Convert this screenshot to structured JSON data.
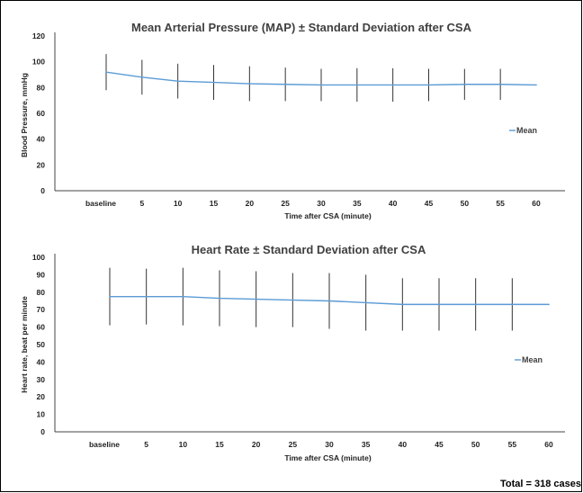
{
  "chart_data": [
    {
      "type": "line",
      "title": "Mean Arterial Pressure (MAP) ± Standard Deviation after CSA",
      "xlabel": "Time after CSA (minute)",
      "ylabel": "Blood Pressure, mmHg",
      "categories": [
        "baseline",
        "5",
        "10",
        "15",
        "20",
        "25",
        "30",
        "35",
        "40",
        "45",
        "50",
        "55",
        "60"
      ],
      "ylim": [
        0,
        120
      ],
      "yticks": [
        0,
        20,
        40,
        60,
        80,
        100,
        120
      ],
      "series": [
        {
          "name": "Mean",
          "color": "#5b9bd5",
          "values": [
            92,
            88,
            85,
            84,
            83,
            82.5,
            82,
            82,
            82,
            82,
            82.5,
            82.5,
            82
          ],
          "sd": [
            14,
            13.5,
            13.5,
            13.5,
            13.5,
            13,
            12.5,
            13,
            13,
            12.5,
            12,
            12,
            null
          ]
        }
      ],
      "legend": "right"
    },
    {
      "type": "line",
      "title": "Heart Rate ± Standard Deviation after CSA",
      "xlabel": "Time after CSA (minute)",
      "ylabel": "Heart rate, beat per minute",
      "categories": [
        "baseline",
        "5",
        "10",
        "15",
        "20",
        "25",
        "30",
        "35",
        "40",
        "45",
        "50",
        "55",
        "60"
      ],
      "ylim": [
        0,
        100
      ],
      "yticks": [
        0,
        10,
        20,
        30,
        40,
        50,
        60,
        70,
        80,
        90,
        100
      ],
      "series": [
        {
          "name": "Mean",
          "color": "#5b9bd5",
          "values": [
            77.5,
            77.5,
            77.5,
            76.5,
            76,
            75.5,
            75,
            74,
            73,
            73,
            73,
            73,
            73
          ],
          "sd": [
            16.5,
            16,
            16.5,
            16,
            16,
            15.5,
            16,
            16,
            15,
            15,
            15,
            15,
            null
          ]
        }
      ],
      "legend": "right"
    }
  ],
  "footer": "Total = 318 cases"
}
